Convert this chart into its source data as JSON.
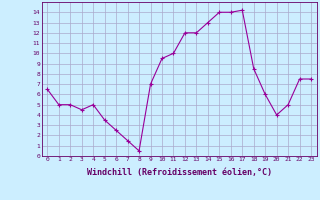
{
  "x": [
    0,
    1,
    2,
    3,
    4,
    5,
    6,
    7,
    8,
    9,
    10,
    11,
    12,
    13,
    14,
    15,
    16,
    17,
    18,
    19,
    20,
    21,
    22,
    23
  ],
  "y": [
    6.5,
    5.0,
    5.0,
    4.5,
    5.0,
    3.5,
    2.5,
    1.5,
    0.5,
    7.0,
    9.5,
    10.0,
    12.0,
    12.0,
    13.0,
    14.0,
    14.0,
    14.2,
    8.5,
    6.0,
    4.0,
    5.0,
    7.5,
    7.5
  ],
  "line_color": "#990099",
  "marker": "+",
  "bg_color": "#cceeff",
  "grid_color": "#aaaacc",
  "xlabel": "Windchill (Refroidissement éolien,°C)",
  "xlabel_color": "#660066",
  "tick_color": "#660066",
  "xlim": [
    -0.5,
    23.5
  ],
  "ylim": [
    0,
    15
  ],
  "xticks": [
    0,
    1,
    2,
    3,
    4,
    5,
    6,
    7,
    8,
    9,
    10,
    11,
    12,
    13,
    14,
    15,
    16,
    17,
    18,
    19,
    20,
    21,
    22,
    23
  ],
  "yticks": [
    0,
    1,
    2,
    3,
    4,
    5,
    6,
    7,
    8,
    9,
    10,
    11,
    12,
    13,
    14
  ],
  "xtick_fontsize": 4.5,
  "ytick_fontsize": 4.5,
  "xlabel_fontsize": 6.0,
  "spine_color": "#660066",
  "markersize": 2.5,
  "linewidth": 0.8
}
